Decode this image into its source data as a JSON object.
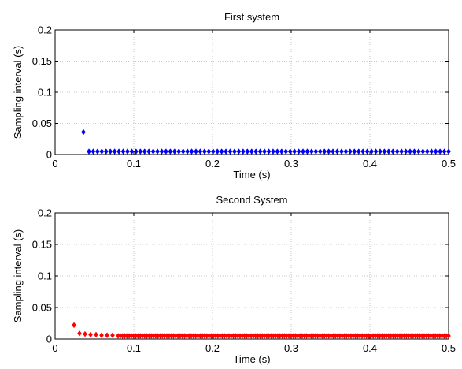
{
  "chart_data": [
    {
      "type": "scatter",
      "title": "First system",
      "xlabel": "Time (s)",
      "ylabel": "Sampling interval (s)",
      "xlim": [
        0,
        0.5
      ],
      "ylim": [
        0,
        0.2
      ],
      "xticks": [
        "0",
        "0.1",
        "0.2",
        "0.3",
        "0.4",
        "0.5"
      ],
      "yticks": [
        "0",
        "0.05",
        "0.1",
        "0.15",
        "0.2"
      ],
      "grid": true,
      "marker": "diamond",
      "color": "#0000ff",
      "series": [
        {
          "first_points": [
            [
              0.036,
              0.036
            ],
            [
              0.043,
              0.005
            ]
          ],
          "constant_segment": {
            "x_start": 0.043,
            "x_end": 0.5,
            "y": 0.005,
            "count": 85
          }
        }
      ]
    },
    {
      "type": "scatter",
      "title": "Second System",
      "xlabel": "Time (s)",
      "ylabel": "Sampling interval (s)",
      "xlim": [
        0,
        0.5
      ],
      "ylim": [
        0,
        0.2
      ],
      "xticks": [
        "0",
        "0.1",
        "0.2",
        "0.3",
        "0.4",
        "0.5"
      ],
      "yticks": [
        "0",
        "0.05",
        "0.1",
        "0.15",
        "0.2"
      ],
      "grid": true,
      "marker": "diamond",
      "color": "#ff0000",
      "series": [
        {
          "first_points": [
            [
              0.024,
              0.022
            ],
            [
              0.031,
              0.009
            ],
            [
              0.038,
              0.008
            ],
            [
              0.045,
              0.007
            ],
            [
              0.052,
              0.007
            ],
            [
              0.059,
              0.006
            ],
            [
              0.066,
              0.006
            ],
            [
              0.073,
              0.006
            ]
          ],
          "constant_segment": {
            "x_start": 0.08,
            "x_end": 0.5,
            "y": 0.005,
            "count": 150
          }
        }
      ]
    }
  ]
}
